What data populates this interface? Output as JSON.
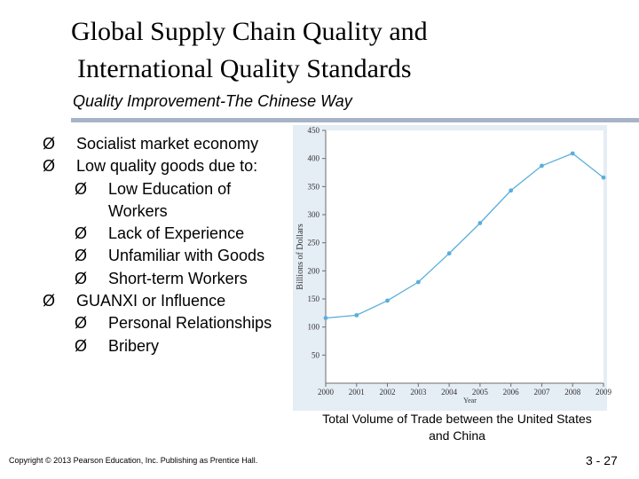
{
  "slide": {
    "title_line1": "Global Supply Chain Quality and",
    "title_line2": "International Quality Standards",
    "subtitle": "Quality Improvement-The Chinese Way",
    "caption": "Total Volume of Trade between the United States and China",
    "footer": "Copyright © 2013 Pearson Education, Inc. Publishing as Prentice Hall.",
    "page_number": "3 - 27"
  },
  "bullets": [
    {
      "level": 1,
      "text": "Socialist market economy",
      "arrow": true
    },
    {
      "level": 1,
      "text": "Low quality goods due to:",
      "arrow": true
    },
    {
      "level": 2,
      "text": "Low Education of",
      "arrow": true
    },
    {
      "level": 3,
      "text": "Workers",
      "arrow": false
    },
    {
      "level": 2,
      "text": "Lack of Experience",
      "arrow": true
    },
    {
      "level": 2,
      "text": "Unfamiliar with Goods",
      "arrow": true
    },
    {
      "level": 2,
      "text": "Short-term Workers",
      "arrow": true
    },
    {
      "level": 1,
      "text": "GUANXI or Influence",
      "arrow": true
    },
    {
      "level": 2,
      "text": "Personal Relationships",
      "arrow": true
    },
    {
      "level": 2,
      "text": "Bribery",
      "arrow": true
    }
  ],
  "arrow_glyph": "Ø",
  "chart_data": {
    "type": "line",
    "x": [
      2000,
      2001,
      2002,
      2003,
      2004,
      2005,
      2006,
      2007,
      2008,
      2009
    ],
    "series": [
      {
        "values": [
          116,
          121,
          147,
          180,
          231,
          285,
          343,
          387,
          409,
          366
        ]
      }
    ],
    "xlabel": "Year",
    "ylabel": "Billions of Dollars",
    "ylim": [
      0,
      450
    ],
    "yticks": [
      50,
      100,
      150,
      200,
      250,
      300,
      350,
      400,
      450
    ],
    "grid": false,
    "line_color": "#5aaedc",
    "frame_color": "#e5edf5"
  }
}
